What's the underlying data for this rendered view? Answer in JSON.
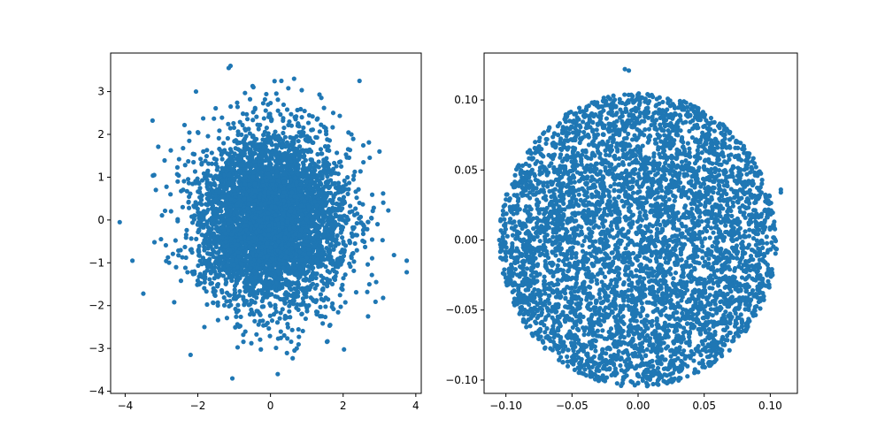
{
  "colors": {
    "marker": "#1f77b4"
  },
  "chart_data": [
    {
      "type": "scatter",
      "distribution": "gaussian",
      "point_count": 5000,
      "title": "",
      "xlabel": "",
      "ylabel": "",
      "xlim": [
        -4.4,
        4.15
      ],
      "ylim": [
        -4.05,
        3.9
      ],
      "xticks": [
        -4,
        -2,
        0,
        2,
        4
      ],
      "xtick_labels": [
        "−4",
        "−2",
        "0",
        "2",
        "4"
      ],
      "yticks": [
        -4,
        -3,
        -2,
        -1,
        0,
        1,
        2,
        3
      ],
      "ytick_labels": [
        "−4",
        "−3",
        "−2",
        "−1",
        "0",
        "1",
        "2",
        "3"
      ],
      "grid": false,
      "outliers": [
        {
          "x": -4.15,
          "y": -0.05
        },
        {
          "x": -3.8,
          "y": -0.95
        },
        {
          "x": -3.5,
          "y": -1.72
        },
        {
          "x": -1.15,
          "y": 3.55
        },
        {
          "x": -1.1,
          "y": 3.6
        },
        {
          "x": -1.05,
          "y": -3.7
        },
        {
          "x": 0.2,
          "y": -3.6
        },
        {
          "x": 2.45,
          "y": 3.25
        },
        {
          "x": 3.75,
          "y": -0.95
        },
        {
          "x": 3.75,
          "y": -1.22
        },
        {
          "x": 3.1,
          "y": -1.82
        },
        {
          "x": 3.4,
          "y": -0.82
        },
        {
          "x": -2.2,
          "y": -3.15
        },
        {
          "x": -2.05,
          "y": 3.0
        },
        {
          "x": 0.65,
          "y": 3.3
        },
        {
          "x": 0.3,
          "y": 3.25
        },
        {
          "x": 3.0,
          "y": 1.6
        },
        {
          "x": 3.1,
          "y": 0.62
        },
        {
          "x": -3.2,
          "y": 1.05
        },
        {
          "x": -2.65,
          "y": -1.92
        }
      ]
    },
    {
      "type": "scatter",
      "distribution": "uniform-disk",
      "point_count": 5000,
      "title": "",
      "xlabel": "",
      "ylabel": "",
      "xlim": [
        -0.1165,
        0.1205
      ],
      "ylim": [
        -0.1095,
        0.1335
      ],
      "xticks": [
        -0.1,
        -0.05,
        0.0,
        0.05,
        0.1
      ],
      "xtick_labels": [
        "−0.10",
        "−0.05",
        "0.00",
        "0.05",
        "0.10"
      ],
      "yticks": [
        -0.1,
        -0.05,
        0.0,
        0.05,
        0.1
      ],
      "ytick_labels": [
        "−0.10",
        "−0.05",
        "0.00",
        "0.05",
        "0.10"
      ],
      "grid": false,
      "disk_radius": 0.105,
      "outliers": [
        {
          "x": -0.01,
          "y": 0.122
        },
        {
          "x": -0.007,
          "y": 0.121
        },
        {
          "x": 0.108,
          "y": 0.036
        },
        {
          "x": 0.108,
          "y": 0.034
        },
        {
          "x": -0.105,
          "y": 0.0
        },
        {
          "x": 0.0,
          "y": -0.102
        }
      ]
    }
  ]
}
